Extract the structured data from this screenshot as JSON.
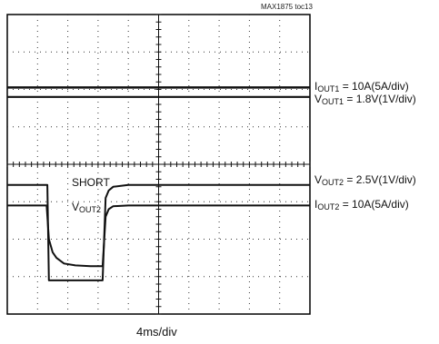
{
  "figure_ref": "MAX1875 toc13",
  "xlabel": "4ms/div",
  "chart_data": {
    "type": "line",
    "grid": true,
    "divisions": {
      "x": 10,
      "y": 8
    },
    "x_scale_label": "4ms/div",
    "xlim": [
      0,
      40
    ],
    "ylim": [
      0,
      8
    ],
    "annotations": [
      {
        "text": "SHORT",
        "x": 7.1,
        "y": 3.7
      },
      {
        "text_main": "V",
        "text_sub": "OUT2",
        "x": 7.1,
        "y": 2.9
      }
    ],
    "series": [
      {
        "name": "IOUT1 = 10A(5A/div)",
        "label_main": "I",
        "label_sub": "OUT1",
        "label_rest": " = 10A(5A/div)",
        "x": [
          0,
          40
        ],
        "y": [
          6.05,
          6.05
        ]
      },
      {
        "name": "VOUT1 = 1.8V(1V/div)",
        "label_main": "V",
        "label_sub": "OUT1",
        "label_rest": " = 1.8V(1V/div)",
        "x": [
          0,
          40
        ],
        "y": [
          5.8,
          5.8
        ]
      },
      {
        "name": "VOUT2 = 2.5V(1V/div)",
        "label_main": "V",
        "label_sub": "OUT2",
        "label_rest": " = 2.5V(1V/div)",
        "x": [
          0,
          5.3,
          5.5,
          12.6,
          13.0,
          13.4,
          14.0,
          16.0,
          40
        ],
        "y": [
          3.45,
          3.45,
          0.9,
          0.9,
          3.1,
          3.3,
          3.4,
          3.45,
          3.45
        ]
      },
      {
        "name": "IOUT2 = 10A(5A/div)",
        "label_main": "I",
        "label_sub": "OUT2",
        "label_rest": " = 10A(5A/div)",
        "x": [
          0,
          5.2,
          5.5,
          6.0,
          6.5,
          7.5,
          9.0,
          11.0,
          12.6,
          13.0,
          13.4,
          14.0,
          16.0,
          40
        ],
        "y": [
          2.9,
          2.9,
          2.0,
          1.65,
          1.5,
          1.35,
          1.3,
          1.28,
          1.28,
          2.6,
          2.8,
          2.88,
          2.9,
          2.9
        ]
      }
    ]
  }
}
